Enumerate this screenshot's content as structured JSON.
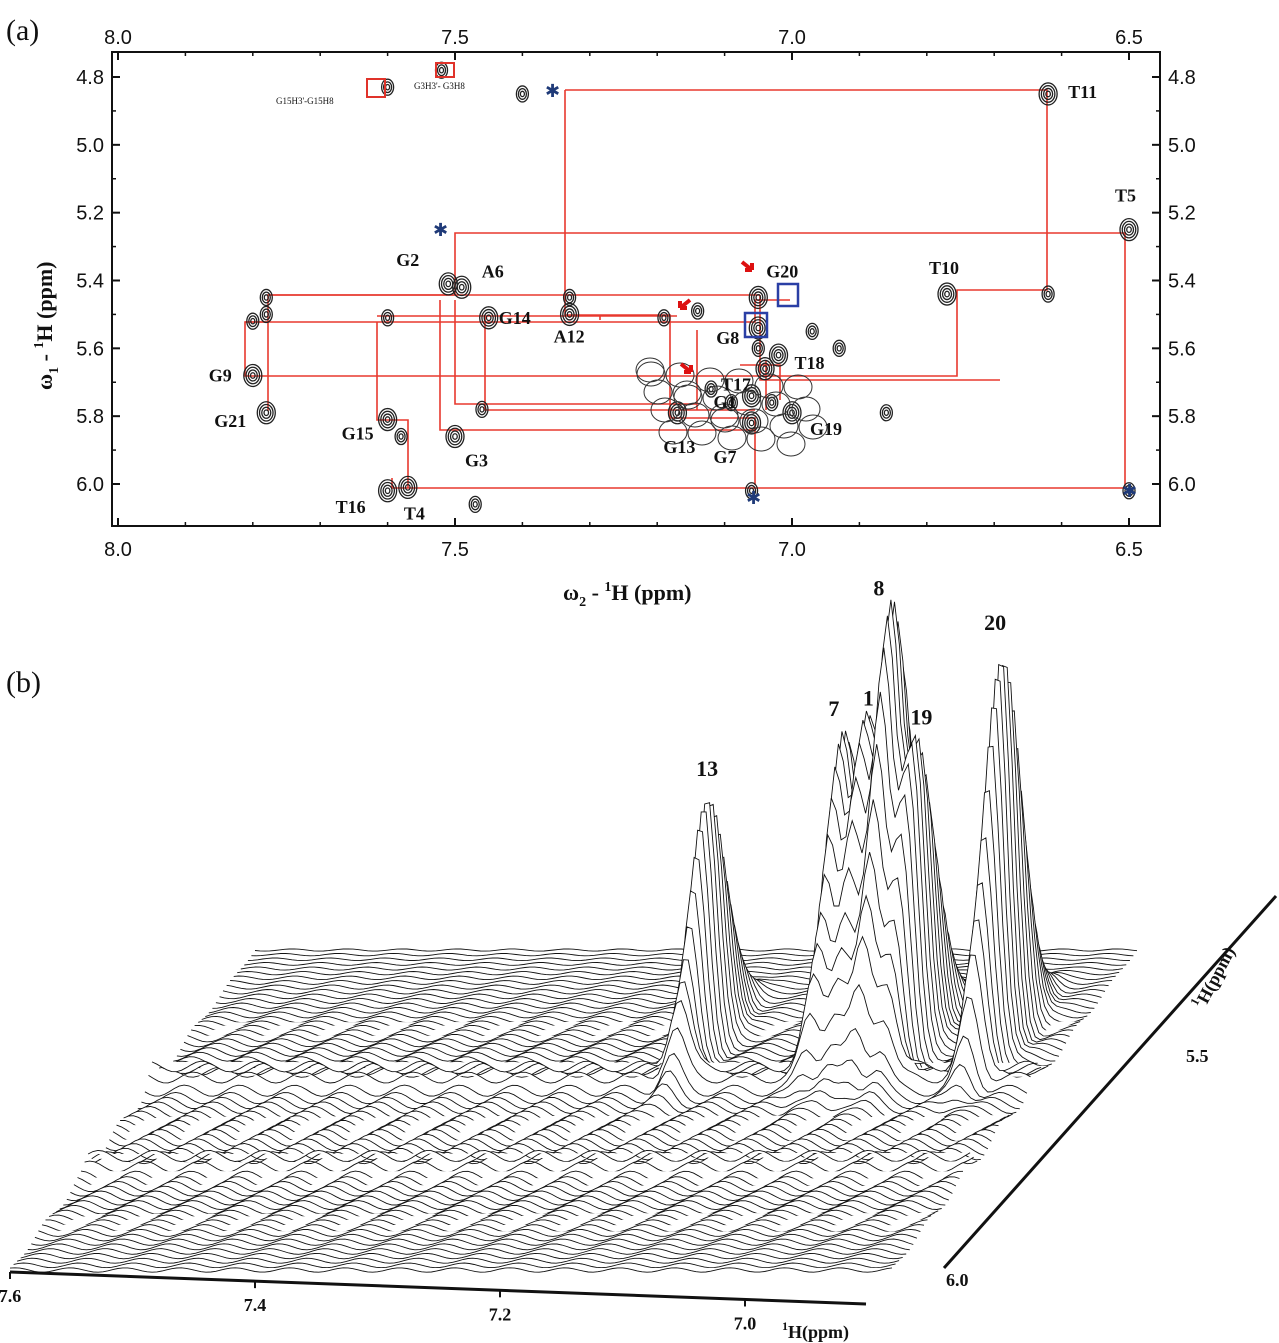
{
  "chart_data": [
    {
      "panel": "(a)",
      "type": "scatter",
      "xlabel": "ω₂ - ¹H (ppm)",
      "ylabel": "ω₁ - ¹H (ppm)",
      "xlim": [
        8.0,
        6.5
      ],
      "ylim": [
        6.1,
        4.8
      ],
      "x_ticks": [
        "8.0",
        "7.5",
        "7.0",
        "6.5"
      ],
      "y_ticks": [
        "4.8",
        "5.0",
        "5.2",
        "5.4",
        "5.6",
        "5.8",
        "6.0"
      ],
      "peaks": [
        {
          "label": "T11",
          "x": 6.62,
          "y": 4.85
        },
        {
          "label": "T5",
          "x": 6.5,
          "y": 5.25
        },
        {
          "label": "T10",
          "x": 6.77,
          "y": 5.44
        },
        {
          "label": "G2",
          "x": 7.51,
          "y": 5.41
        },
        {
          "label": "A6",
          "x": 7.49,
          "y": 5.42
        },
        {
          "label": "G20",
          "x": 7.05,
          "y": 5.45
        },
        {
          "label": "G14",
          "x": 7.45,
          "y": 5.51
        },
        {
          "label": "A12",
          "x": 7.33,
          "y": 5.5
        },
        {
          "label": "G8",
          "x": 7.05,
          "y": 5.54
        },
        {
          "label": "T17",
          "x": 7.04,
          "y": 5.66
        },
        {
          "label": "T18",
          "x": 7.02,
          "y": 5.62
        },
        {
          "label": "G9",
          "x": 7.8,
          "y": 5.68
        },
        {
          "label": "G1",
          "x": 7.06,
          "y": 5.74
        },
        {
          "label": "G21",
          "x": 7.78,
          "y": 5.79
        },
        {
          "label": "G15",
          "x": 7.6,
          "y": 5.81
        },
        {
          "label": "G3",
          "x": 7.5,
          "y": 5.86
        },
        {
          "label": "G13",
          "x": 7.17,
          "y": 5.79
        },
        {
          "label": "G7",
          "x": 7.06,
          "y": 5.82
        },
        {
          "label": "G19",
          "x": 7.0,
          "y": 5.79
        },
        {
          "label": "T16",
          "x": 7.6,
          "y": 6.02
        },
        {
          "label": "T4",
          "x": 7.57,
          "y": 6.01
        }
      ],
      "annotations": [
        "G15H3'-G15H8",
        "G3H3'- G3H8"
      ]
    },
    {
      "panel": "(b)",
      "type": "surface",
      "x_ticks": [
        "7.6",
        "7.4",
        "7.2",
        "7.0"
      ],
      "x_label": "¹H(ppm)",
      "y_ticks": [
        "5.5",
        "6.0"
      ],
      "y_label": "¹H(ppm)",
      "peaks": [
        {
          "label": "13",
          "x": 7.17,
          "height": 0.58
        },
        {
          "label": "7",
          "x": 7.06,
          "height": 0.72
        },
        {
          "label": "1",
          "x": 7.04,
          "height": 0.73
        },
        {
          "label": "8",
          "x": 7.02,
          "height": 1.0
        },
        {
          "label": "19",
          "x": 7.0,
          "height": 0.7
        },
        {
          "label": "20",
          "x": 6.93,
          "height": 0.92
        }
      ]
    }
  ],
  "panel_a": {
    "label": "(a)",
    "x_ticks": [
      "8.0",
      "7.5",
      "7.0",
      "6.5"
    ],
    "y_ticks": [
      "4.8",
      "5.0",
      "5.2",
      "5.4",
      "5.6",
      "5.8",
      "6.0"
    ],
    "xlabel_main": "ω",
    "xlabel_sub": "2",
    "xlabel_rest": " - ",
    "xlabel_sup": "1",
    "xlabel_unit": "H (ppm)",
    "ylabel_main": "ω",
    "ylabel_sub": "1",
    "ylabel_rest": " - ",
    "ylabel_sup": "1",
    "ylabel_unit": "H (ppm)",
    "noe1": "G15H3'-G15H8",
    "noe2": "G3H3'- G3H8"
  },
  "panel_b": {
    "label": "(b)",
    "x_ticks": [
      "7.6",
      "7.4",
      "7.2",
      "7.0"
    ],
    "x_unit_sup": "1",
    "x_unit": "H(ppm)",
    "y_ticks": [
      "5.5",
      "6.0"
    ],
    "y_unit_sup": "1",
    "y_unit": "H(ppm)"
  }
}
